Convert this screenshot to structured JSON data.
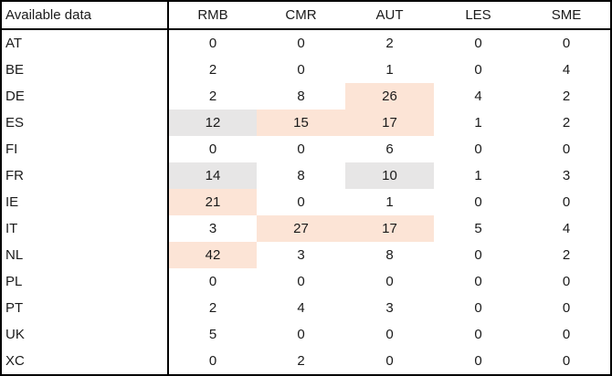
{
  "colors": {
    "highlight_orange": "#FCE4D6",
    "highlight_gray": "#E7E6E6",
    "border": "#000000",
    "text": "#1a1a1a"
  },
  "chart_data": {
    "type": "table",
    "title": "Available data",
    "corner_label": "Available data",
    "columns": [
      "RMB",
      "CMR",
      "AUT",
      "LES",
      "SME"
    ],
    "rows": [
      {
        "label": "AT",
        "values": [
          "0",
          "0",
          "2",
          "0",
          "0"
        ],
        "fills": [
          "",
          "",
          "",
          "",
          ""
        ]
      },
      {
        "label": "BE",
        "values": [
          "2",
          "0",
          "1",
          "0",
          "4"
        ],
        "fills": [
          "",
          "",
          "",
          "",
          ""
        ]
      },
      {
        "label": "DE",
        "values": [
          "2",
          "8",
          "26",
          "4",
          "2"
        ],
        "fills": [
          "",
          "",
          "orange",
          "",
          ""
        ]
      },
      {
        "label": "ES",
        "values": [
          "12",
          "15",
          "17",
          "1",
          "2"
        ],
        "fills": [
          "gray",
          "orange",
          "orange",
          "",
          ""
        ]
      },
      {
        "label": "FI",
        "values": [
          "0",
          "0",
          "6",
          "0",
          "0"
        ],
        "fills": [
          "",
          "",
          "",
          "",
          ""
        ]
      },
      {
        "label": "FR",
        "values": [
          "14",
          "8",
          "10",
          "1",
          "3"
        ],
        "fills": [
          "gray",
          "",
          "gray",
          "",
          ""
        ]
      },
      {
        "label": "IE",
        "values": [
          "21",
          "0",
          "1",
          "0",
          "0"
        ],
        "fills": [
          "orange",
          "",
          "",
          "",
          ""
        ]
      },
      {
        "label": "IT",
        "values": [
          "3",
          "27",
          "17",
          "5",
          "4"
        ],
        "fills": [
          "",
          "orange",
          "orange",
          "",
          ""
        ]
      },
      {
        "label": "NL",
        "values": [
          "42",
          "3",
          "8",
          "0",
          "2"
        ],
        "fills": [
          "orange",
          "",
          "",
          "",
          ""
        ]
      },
      {
        "label": "PL",
        "values": [
          "0",
          "0",
          "0",
          "0",
          "0"
        ],
        "fills": [
          "",
          "",
          "",
          "",
          ""
        ]
      },
      {
        "label": "PT",
        "values": [
          "2",
          "4",
          "3",
          "0",
          "0"
        ],
        "fills": [
          "",
          "",
          "",
          "",
          ""
        ]
      },
      {
        "label": "UK",
        "values": [
          "5",
          "0",
          "0",
          "0",
          "0"
        ],
        "fills": [
          "",
          "",
          "",
          "",
          ""
        ]
      },
      {
        "label": "XC",
        "values": [
          "0",
          "2",
          "0",
          "0",
          "0"
        ],
        "fills": [
          "",
          "",
          "",
          "",
          ""
        ]
      }
    ]
  }
}
